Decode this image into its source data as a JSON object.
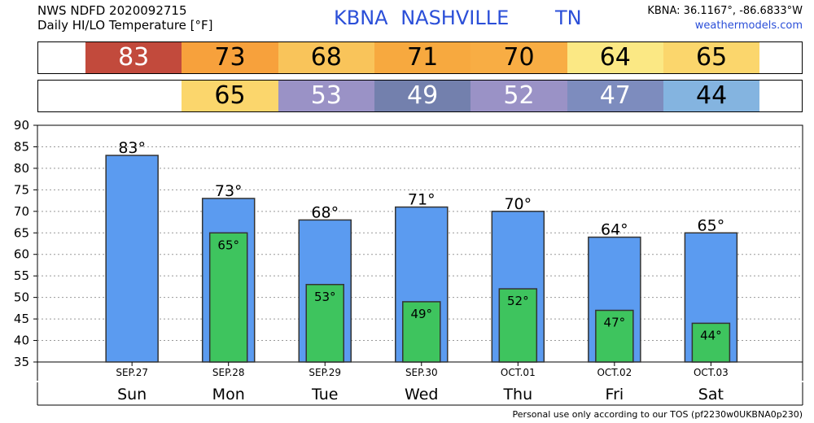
{
  "header": {
    "product": "NWS NDFD 2020092715",
    "subtitle": "Daily HI/LO Temperature [°F]",
    "station": "KBNA  NASHVILLE",
    "state": "TN",
    "coords": "KBNA: 36.1167°, -86.6833°W",
    "site": "weathermodels.com"
  },
  "footer": "Personal use only according to our TOS (pf2230w0UKBNA0p230)",
  "degree_symbol": "°",
  "hi_table": [
    {
      "value": "83",
      "bg": "#c24a3c",
      "fg": "#ffffff"
    },
    {
      "value": "73",
      "bg": "#f7a13c",
      "fg": "#000000"
    },
    {
      "value": "68",
      "bg": "#f9c45a",
      "fg": "#000000"
    },
    {
      "value": "71",
      "bg": "#f7a93f",
      "fg": "#000000"
    },
    {
      "value": "70",
      "bg": "#f8ad44",
      "fg": "#000000"
    },
    {
      "value": "64",
      "bg": "#fbe884",
      "fg": "#000000"
    },
    {
      "value": "65",
      "bg": "#fbd66c",
      "fg": "#000000"
    }
  ],
  "lo_table": [
    {
      "value": "",
      "bg": "#ffffff",
      "fg": "#000000"
    },
    {
      "value": "65",
      "bg": "#fbd66c",
      "fg": "#000000"
    },
    {
      "value": "53",
      "bg": "#9a92c6",
      "fg": "#ffffff"
    },
    {
      "value": "49",
      "bg": "#7380ad",
      "fg": "#ffffff"
    },
    {
      "value": "52",
      "bg": "#9a92c6",
      "fg": "#ffffff"
    },
    {
      "value": "47",
      "bg": "#7d8cbe",
      "fg": "#ffffff"
    },
    {
      "value": "44",
      "bg": "#84b4e0",
      "fg": "#000000"
    }
  ],
  "chart_data": {
    "type": "bar",
    "categories": [
      "SEP.27",
      "SEP.28",
      "SEP.29",
      "SEP.30",
      "OCT.01",
      "OCT.02",
      "OCT.03"
    ],
    "days": [
      "Sun",
      "Mon",
      "Tue",
      "Wed",
      "Thu",
      "Fri",
      "Sat"
    ],
    "series": [
      {
        "values": [
          83,
          73,
          68,
          71,
          70,
          64,
          65
        ],
        "color": "#5b9bf0"
      },
      {
        "values": [
          null,
          65,
          53,
          49,
          52,
          47,
          44
        ],
        "color": "#3ec45e"
      }
    ],
    "ylim": [
      35,
      90
    ],
    "yticks": [
      35,
      40,
      45,
      50,
      55,
      60,
      65,
      70,
      75,
      80,
      85,
      90
    ],
    "grid": true
  }
}
